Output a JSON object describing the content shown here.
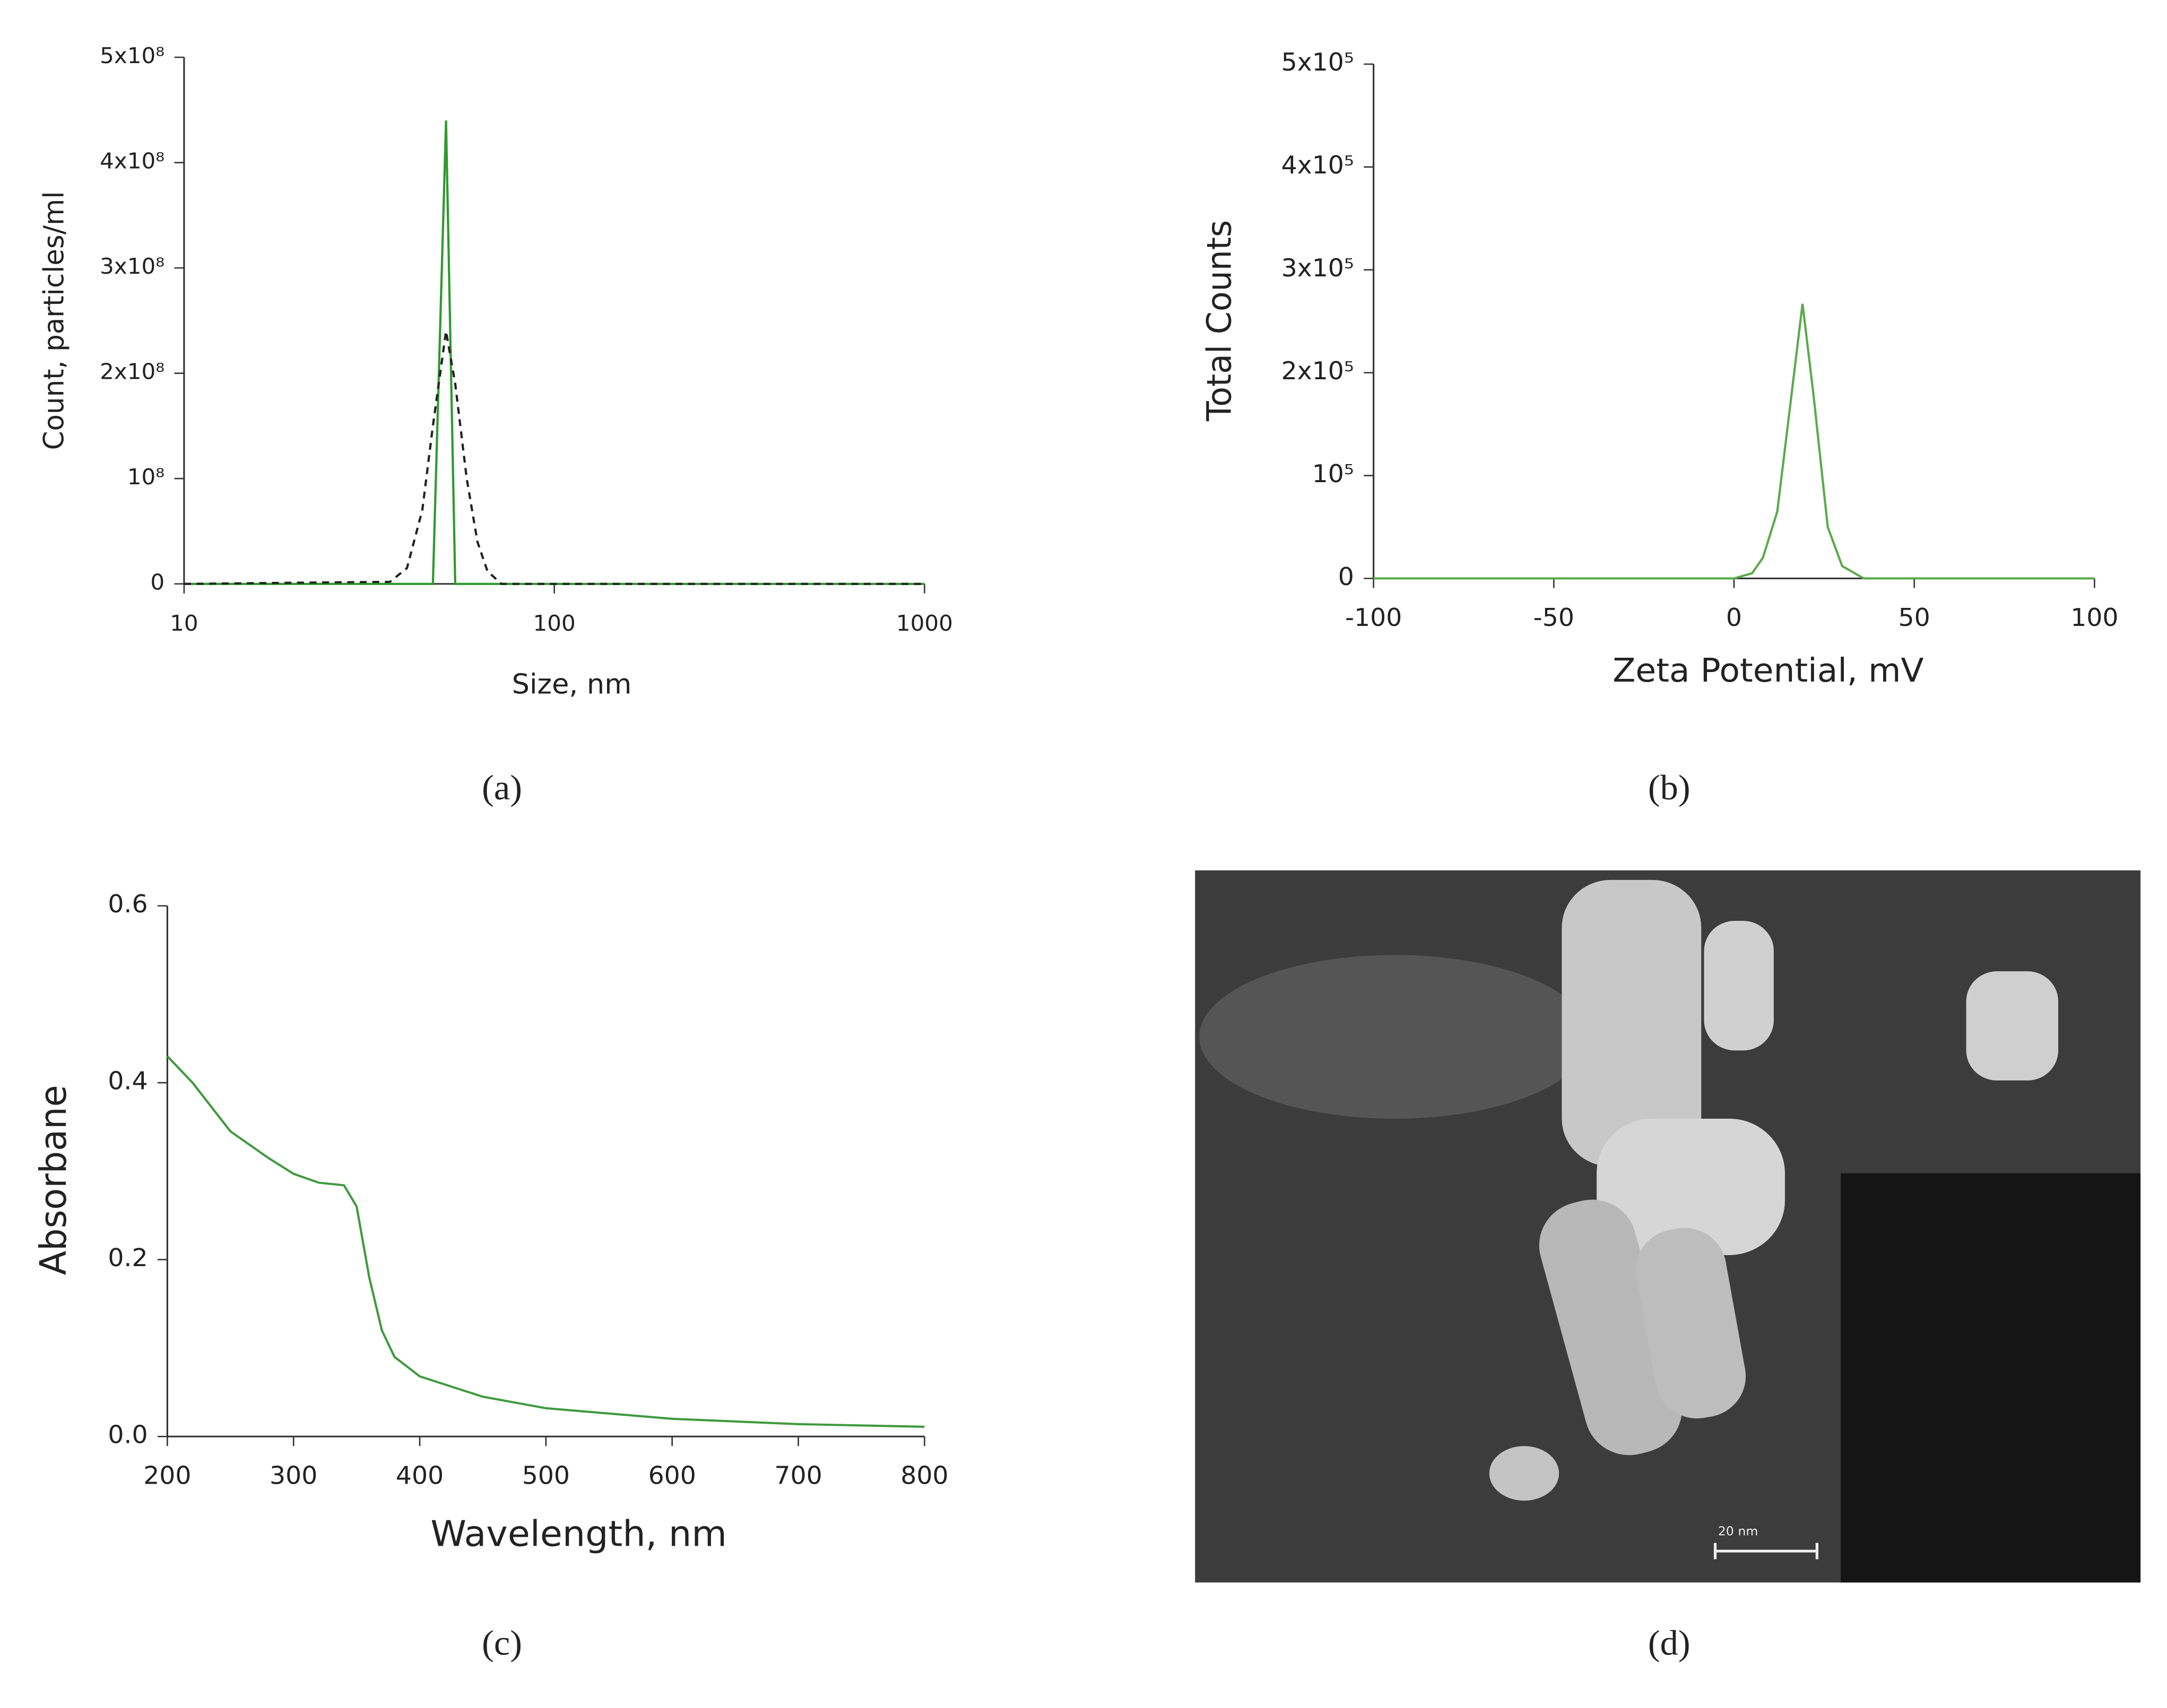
{
  "chart_data": [
    {
      "type": "line",
      "panel_label": "(a)",
      "x_label": "Size, nm",
      "y_label": "Count, particles/ml",
      "xscale": "log",
      "xlim": [
        10,
        1000
      ],
      "xticks": [
        10,
        100,
        1000
      ],
      "ylim": [
        0,
        500000000
      ],
      "yticks": [
        0,
        {
          "value": 100000000,
          "label": "10⁸"
        },
        {
          "value": 200000000,
          "label": "2x10⁸"
        },
        {
          "value": 300000000,
          "label": "3x10⁸"
        },
        {
          "value": 400000000,
          "label": "4x10⁸"
        },
        {
          "value": 500000000,
          "label": "5x10⁸"
        }
      ],
      "x": [
        10,
        36,
        40,
        44,
        47,
        51,
        54,
        58,
        62,
        66,
        72,
        1000
      ],
      "series": [
        {
          "color": "#2e9a2e",
          "values": [
            0,
            0,
            0,
            0,
            0,
            440000000,
            0,
            0,
            0,
            0,
            0,
            0
          ]
        },
        {
          "color": "#222222",
          "dashed": true,
          "values": [
            0,
            2000000,
            15000000,
            70000000,
            150000000,
            240000000,
            190000000,
            100000000,
            40000000,
            12000000,
            0,
            0
          ]
        }
      ]
    },
    {
      "type": "line",
      "panel_label": "(b)",
      "x_label": "Zeta Potential, mV",
      "y_label": "Total Counts",
      "xlim": [
        -100,
        100
      ],
      "xticks": [
        -100,
        -50,
        0,
        50,
        100
      ],
      "ylim": [
        0,
        500000
      ],
      "yticks": [
        0,
        {
          "value": 100000,
          "label": "10⁵"
        },
        {
          "value": 200000,
          "label": "2x10⁵"
        },
        {
          "value": 300000,
          "label": "3x10⁵"
        },
        {
          "value": 400000,
          "label": "4x10⁵"
        },
        {
          "value": 500000,
          "label": "5x10⁵"
        }
      ],
      "x": [
        -100,
        0,
        5,
        8,
        12,
        16,
        19,
        22,
        26,
        30,
        36,
        40,
        100
      ],
      "series": [
        {
          "color": "#5aaa4a",
          "values": [
            0,
            0,
            5000,
            20000,
            65000,
            180000,
            267000,
            180000,
            50000,
            12000,
            0,
            0,
            0
          ]
        }
      ]
    },
    {
      "type": "line",
      "panel_label": "(c)",
      "x_label": "Wavelength, nm",
      "y_label": "Absorbane",
      "xlim": [
        200,
        800
      ],
      "xticks": [
        200,
        300,
        400,
        500,
        600,
        700,
        800
      ],
      "ylim": [
        0,
        0.6
      ],
      "yticks": [
        {
          "value": 0,
          "label": "0.0"
        },
        0.2,
        0.4,
        0.6
      ],
      "x": [
        200,
        220,
        250,
        280,
        300,
        320,
        340,
        350,
        360,
        370,
        380,
        400,
        450,
        500,
        600,
        700,
        800
      ],
      "series": [
        {
          "color": "#3f9a3f",
          "values": [
            0.43,
            0.4,
            0.345,
            0.315,
            0.297,
            0.287,
            0.284,
            0.26,
            0.18,
            0.12,
            0.09,
            0.068,
            0.045,
            0.032,
            0.02,
            0.014,
            0.011
          ]
        }
      ]
    }
  ],
  "image_panel": {
    "panel_label": "(d)",
    "scale_bar": "20 nm"
  }
}
